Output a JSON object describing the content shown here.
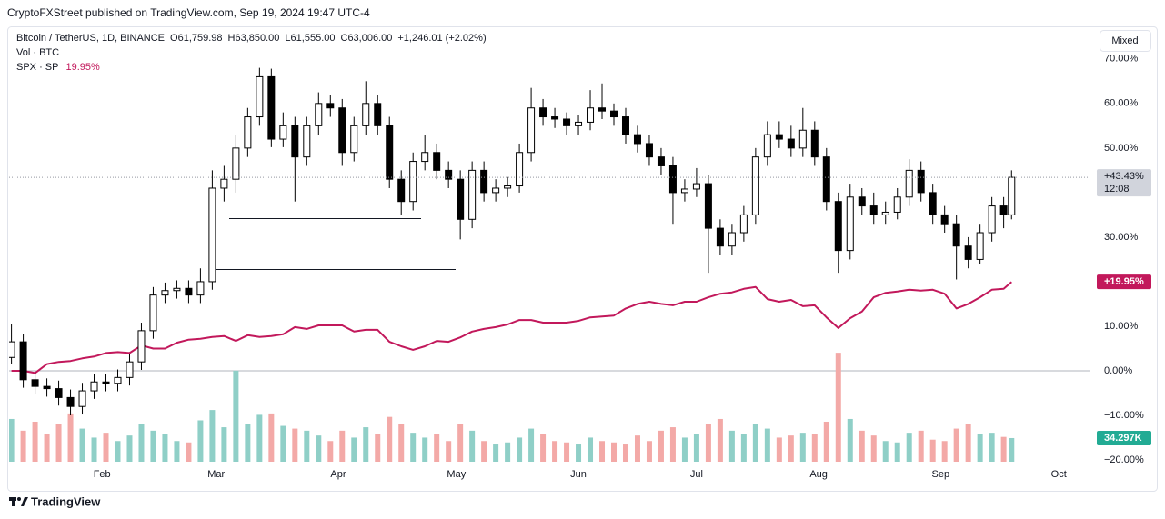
{
  "header": {
    "publisher": "CryptoFXStreet published on TradingView.com, Sep 19, 2024 19:47 UTC-4"
  },
  "footer": {
    "brand": "TradingView"
  },
  "chart_data": {
    "type": "candlestick",
    "symbol": "Bitcoin / TetherUS, 1D, BINANCE",
    "ohlc_legend": [
      {
        "label": "O",
        "value": "61,759.98"
      },
      {
        "label": "H",
        "value": "63,850.00"
      },
      {
        "label": "L",
        "value": "61,555.00"
      },
      {
        "label": "C",
        "value": "63,006.00"
      }
    ],
    "change": "+1,246.01 (+2.02%)",
    "volume_legend": "Vol · BTC",
    "compare_legend": "SPX · SP",
    "compare_legend_value": "19.95%",
    "scale_mode": "Mixed",
    "xlim": [
      7.4,
      281.8
    ],
    "xticks": [
      {
        "value": 31,
        "label": "Feb"
      },
      {
        "value": 60,
        "label": "Mar"
      },
      {
        "value": 91,
        "label": "Apr"
      },
      {
        "value": 121,
        "label": "May"
      },
      {
        "value": 152,
        "label": "Jun"
      },
      {
        "value": 182,
        "label": "Jul"
      },
      {
        "value": 213,
        "label": "Aug"
      },
      {
        "value": 244,
        "label": "Sep"
      },
      {
        "value": 274,
        "label": "Oct"
      }
    ],
    "ylim": [
      -20.4,
      77.1
    ],
    "yticks": [
      {
        "value": 70,
        "label": "70.00%"
      },
      {
        "value": 60,
        "label": "60.00%"
      },
      {
        "value": 50,
        "label": "50.00%"
      },
      {
        "value": 30,
        "label": "30.00%"
      },
      {
        "value": 10,
        "label": "10.00%"
      },
      {
        "value": 0,
        "label": "0.00%"
      },
      {
        "value": -10,
        "label": "−10.00%"
      },
      {
        "value": -20,
        "label": "−20.00%"
      }
    ],
    "x": [
      8,
      11,
      14,
      17,
      20,
      23,
      26,
      29,
      32,
      35,
      38,
      41,
      44,
      47,
      50,
      53,
      56,
      59,
      62,
      65,
      68,
      71,
      74,
      77,
      80,
      83,
      86,
      89,
      92,
      95,
      98,
      101,
      104,
      107,
      110,
      113,
      116,
      119,
      122,
      125,
      128,
      131,
      134,
      137,
      140,
      143,
      146,
      149,
      152,
      155,
      158,
      161,
      164,
      167,
      170,
      173,
      176,
      179,
      182,
      185,
      188,
      191,
      194,
      197,
      200,
      203,
      206,
      209,
      212,
      215,
      218,
      221,
      224,
      227,
      230,
      233,
      236,
      239,
      242,
      245,
      248,
      251,
      254,
      257,
      260,
      262
    ],
    "candles": [
      [
        3,
        10.5,
        1.5,
        6.5
      ],
      [
        6.5,
        8.3,
        -3.8,
        -2
      ],
      [
        -2,
        -0.2,
        -5.3,
        -3.5
      ],
      [
        -3.5,
        -1.7,
        -5.8,
        -4
      ],
      [
        -4,
        -2.2,
        -7.8,
        -6
      ],
      [
        -6,
        -4.2,
        -10,
        -8
      ],
      [
        -8,
        -2.7,
        -9.8,
        -4.5
      ],
      [
        -4.5,
        -0.7,
        -6.3,
        -2.5
      ],
      [
        -2.5,
        -0.7,
        -4.6,
        -2.8
      ],
      [
        -2.8,
        0.3,
        -4.6,
        -1.5
      ],
      [
        -1.5,
        3.8,
        -3.3,
        2
      ],
      [
        2,
        10.8,
        0.2,
        9
      ],
      [
        9,
        18.8,
        7.2,
        17
      ],
      [
        17,
        19.8,
        15.2,
        18
      ],
      [
        18,
        20.3,
        16.2,
        18.5
      ],
      [
        18.5,
        20.3,
        15.2,
        17
      ],
      [
        17,
        23,
        15.2,
        20
      ],
      [
        20,
        45,
        18.2,
        41
      ],
      [
        41,
        46,
        38,
        43
      ],
      [
        43,
        53,
        40,
        50
      ],
      [
        50,
        59,
        48,
        57
      ],
      [
        57,
        68,
        55,
        66
      ],
      [
        66,
        67.8,
        50.2,
        52
      ],
      [
        52,
        58,
        50.2,
        55
      ],
      [
        55,
        57,
        38,
        48
      ],
      [
        48,
        57,
        46,
        55
      ],
      [
        55,
        62.5,
        53,
        60
      ],
      [
        60,
        62,
        57,
        59
      ],
      [
        59,
        61,
        46,
        49
      ],
      [
        49,
        57,
        47,
        55
      ],
      [
        55,
        65,
        53,
        60
      ],
      [
        60,
        62,
        53,
        55
      ],
      [
        55,
        57,
        41,
        43
      ],
      [
        43,
        45,
        35,
        38
      ],
      [
        38,
        49,
        36,
        47
      ],
      [
        47,
        53,
        45,
        49
      ],
      [
        49,
        51,
        43,
        45
      ],
      [
        45,
        47,
        41,
        43
      ],
      [
        43,
        45,
        29.5,
        34
      ],
      [
        34,
        47,
        32,
        45
      ],
      [
        45,
        47,
        38,
        40
      ],
      [
        40,
        43,
        38,
        41
      ],
      [
        41,
        43.5,
        39,
        41.5
      ],
      [
        41.5,
        51,
        40,
        49
      ],
      [
        49,
        63.5,
        47,
        59
      ],
      [
        59,
        61,
        55,
        57
      ],
      [
        57,
        59,
        54.5,
        56.5
      ],
      [
        56.5,
        58,
        53,
        55
      ],
      [
        55,
        57.5,
        53,
        55.8
      ],
      [
        55.8,
        63,
        54,
        59
      ],
      [
        59,
        64.5,
        56.5,
        58.3
      ],
      [
        58.3,
        60,
        55,
        57
      ],
      [
        57,
        59,
        51,
        53
      ],
      [
        53,
        55,
        49,
        51
      ],
      [
        51,
        53,
        46,
        48
      ],
      [
        48,
        50,
        44,
        46
      ],
      [
        46,
        48,
        33,
        40
      ],
      [
        40,
        43,
        38,
        40.8
      ],
      [
        40.8,
        45.5,
        39,
        42
      ],
      [
        42,
        44,
        22,
        32
      ],
      [
        32,
        34,
        26,
        28
      ],
      [
        28,
        33,
        26,
        31
      ],
      [
        31,
        37,
        29,
        35
      ],
      [
        35,
        50,
        33,
        48
      ],
      [
        48,
        56,
        46,
        53
      ],
      [
        53,
        56,
        50,
        52
      ],
      [
        52,
        55,
        48,
        50
      ],
      [
        50,
        59,
        48,
        54
      ],
      [
        54,
        56,
        46,
        48
      ],
      [
        48,
        50,
        36,
        38
      ],
      [
        38,
        40,
        22,
        27
      ],
      [
        27,
        42,
        25,
        39
      ],
      [
        39,
        41,
        35,
        37
      ],
      [
        37,
        40,
        33,
        35
      ],
      [
        35,
        38,
        33,
        35.6
      ],
      [
        35.6,
        41,
        34,
        39
      ],
      [
        39,
        47.5,
        37,
        45
      ],
      [
        45,
        47,
        38,
        40
      ],
      [
        40,
        42,
        33,
        35
      ],
      [
        35,
        37,
        31,
        33
      ],
      [
        33,
        35,
        20.5,
        28
      ],
      [
        28,
        30,
        23,
        25
      ],
      [
        25,
        33,
        24,
        31
      ],
      [
        31,
        39,
        29,
        37
      ],
      [
        37,
        39,
        32,
        35
      ],
      [
        35,
        45,
        34,
        43.43
      ]
    ],
    "up_color": "#ffffff",
    "down_color": "#000000",
    "border_color": "#000000",
    "last_label": "+43.43%",
    "countdown": "12:08",
    "volume": {
      "ylim": [
        0,
        630
      ],
      "label": "34.297K",
      "up_color": "#8fcfc7",
      "down_color": "#f3a9a7",
      "badge_color": "#22ab94",
      "values": [
        62,
        45,
        58,
        40,
        55,
        70,
        48,
        35,
        42,
        30,
        38,
        55,
        45,
        40,
        30,
        28,
        60,
        75,
        50,
        132,
        55,
        68,
        70,
        52,
        48,
        45,
        38,
        30,
        45,
        35,
        50,
        40,
        65,
        55,
        42,
        35,
        40,
        30,
        55,
        45,
        30,
        25,
        28,
        35,
        48,
        40,
        30,
        28,
        25,
        35,
        30,
        28,
        25,
        38,
        30,
        45,
        50,
        35,
        40,
        55,
        62,
        45,
        40,
        55,
        48,
        35,
        38,
        42,
        40,
        58,
        158,
        62,
        45,
        38,
        30,
        28,
        42,
        45,
        32,
        30,
        48,
        55,
        40,
        42,
        36,
        34.297
      ]
    },
    "compare": {
      "name": "SPX · SP",
      "color": "#c2185b",
      "label": "+19.95%",
      "values": [
        0,
        0,
        -0.5,
        1.5,
        2,
        2.2,
        2.8,
        3.2,
        4,
        4.2,
        4,
        5.7,
        5,
        5,
        6.3,
        7,
        7.2,
        7.6,
        7.8,
        6.7,
        8,
        7.6,
        7.8,
        8.2,
        9.8,
        9.4,
        10.2,
        10.2,
        10.2,
        8.8,
        9.2,
        9.2,
        6.5,
        5.5,
        4.7,
        5.5,
        6.7,
        6.5,
        7.5,
        8.8,
        9.4,
        9.8,
        10.4,
        11.4,
        11.4,
        10.8,
        10.8,
        10.8,
        11.2,
        12,
        12.2,
        12.4,
        14,
        15,
        15.5,
        15,
        14.7,
        15.5,
        15.5,
        16.5,
        17.3,
        17.6,
        18.4,
        18.8,
        16.1,
        15.5,
        15.9,
        14.5,
        14.7,
        12,
        9.6,
        11.8,
        13.3,
        16.5,
        17.5,
        17.8,
        18.2,
        18,
        18.2,
        17.3,
        14,
        15,
        16.5,
        18.2,
        18.4,
        19.95
      ]
    }
  }
}
